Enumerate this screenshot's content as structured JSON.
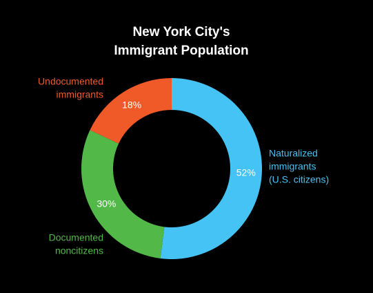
{
  "chart_data": {
    "type": "pie",
    "title": [
      "New York City's",
      "Immigrant Population"
    ],
    "categories": [
      [
        "Naturalized",
        "immigrants",
        "(U.S. citizens)"
      ],
      [
        "Documented",
        "noncitizens"
      ],
      [
        "Undocumented",
        "immigrants"
      ]
    ],
    "values": [
      52,
      30,
      18
    ],
    "value_labels": [
      "52%",
      "30%",
      "18%"
    ],
    "colors": [
      "#45c3f5",
      "#52b848",
      "#f05a28"
    ],
    "donut": true
  }
}
